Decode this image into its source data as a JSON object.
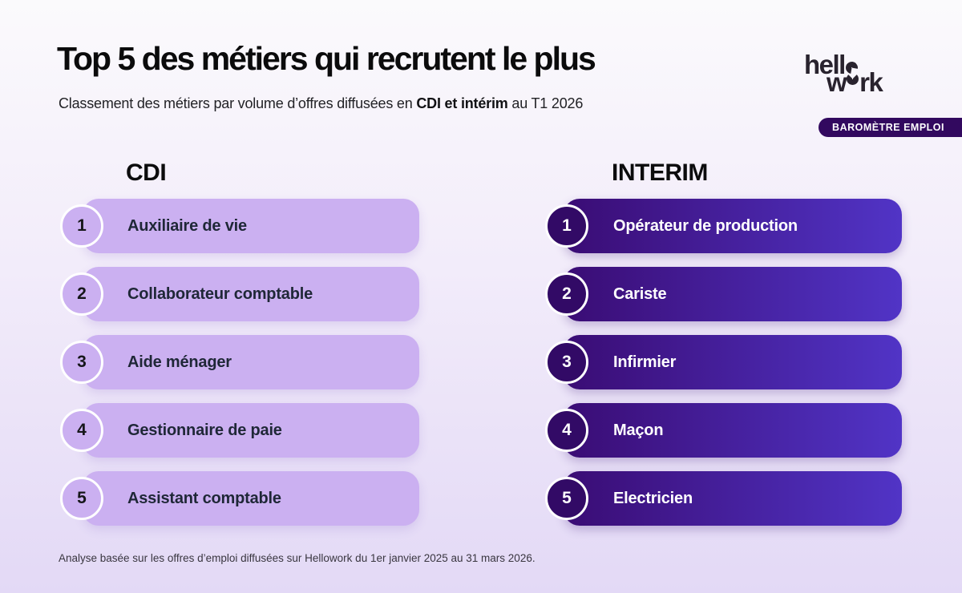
{
  "header": {
    "title": "Top 5 des métiers qui recrutent le plus",
    "subtitle": {
      "prefix": "Classement des métiers par volume d’offres diffusées en ",
      "bold": "CDI et intérim",
      "suffix": " au T1 2026"
    }
  },
  "logo": {
    "line1": "hell",
    "w": "w",
    "rk": "rk",
    "badge": "BAROMÈTRE EMPLOI"
  },
  "columns": [
    {
      "header": "CDI",
      "items": [
        {
          "rank": "1",
          "label": "Auxiliaire de vie"
        },
        {
          "rank": "2",
          "label": "Collaborateur comptable"
        },
        {
          "rank": "3",
          "label": "Aide ménager"
        },
        {
          "rank": "4",
          "label": "Gestionnaire de paie"
        },
        {
          "rank": "5",
          "label": "Assistant comptable"
        }
      ]
    },
    {
      "header": "INTERIM",
      "items": [
        {
          "rank": "1",
          "label": "Opérateur de production"
        },
        {
          "rank": "2",
          "label": "Cariste"
        },
        {
          "rank": "3",
          "label": "Infirmier"
        },
        {
          "rank": "4",
          "label": "Maçon"
        },
        {
          "rank": "5",
          "label": "Electricien"
        }
      ]
    }
  ],
  "footnote": "Analyse basée sur les offres d’emploi diffusées sur Hellowork du 1er janvier 2025 au 31 mars 2026.",
  "colors": {
    "background_top": "#fbfafc",
    "background_bottom": "#e3d9f6",
    "cdi_bar": "#cbb0f1",
    "cdi_text": "#1f2737",
    "interim_bar_start": "#3a0c74",
    "interim_bar_end": "#5134c6",
    "interim_circle": "#320a66",
    "badge_bg": "#32095f",
    "logo_ink": "#29232e"
  },
  "chart_data": {
    "type": "table",
    "title": "Top 5 des métiers qui recrutent le plus",
    "subtitle": "Classement des métiers par volume d’offres diffusées en CDI et intérim au T1 2026",
    "categories": [
      1,
      2,
      3,
      4,
      5
    ],
    "series": [
      {
        "name": "CDI",
        "values": [
          "Auxiliaire de vie",
          "Collaborateur comptable",
          "Aide ménager",
          "Gestionnaire de paie",
          "Assistant comptable"
        ]
      },
      {
        "name": "INTERIM",
        "values": [
          "Opérateur de production",
          "Cariste",
          "Infirmier",
          "Maçon",
          "Electricien"
        ]
      }
    ],
    "source_note": "Analyse basée sur les offres d’emploi diffusées sur Hellowork du 1er janvier 2025 au 31 mars 2026."
  }
}
